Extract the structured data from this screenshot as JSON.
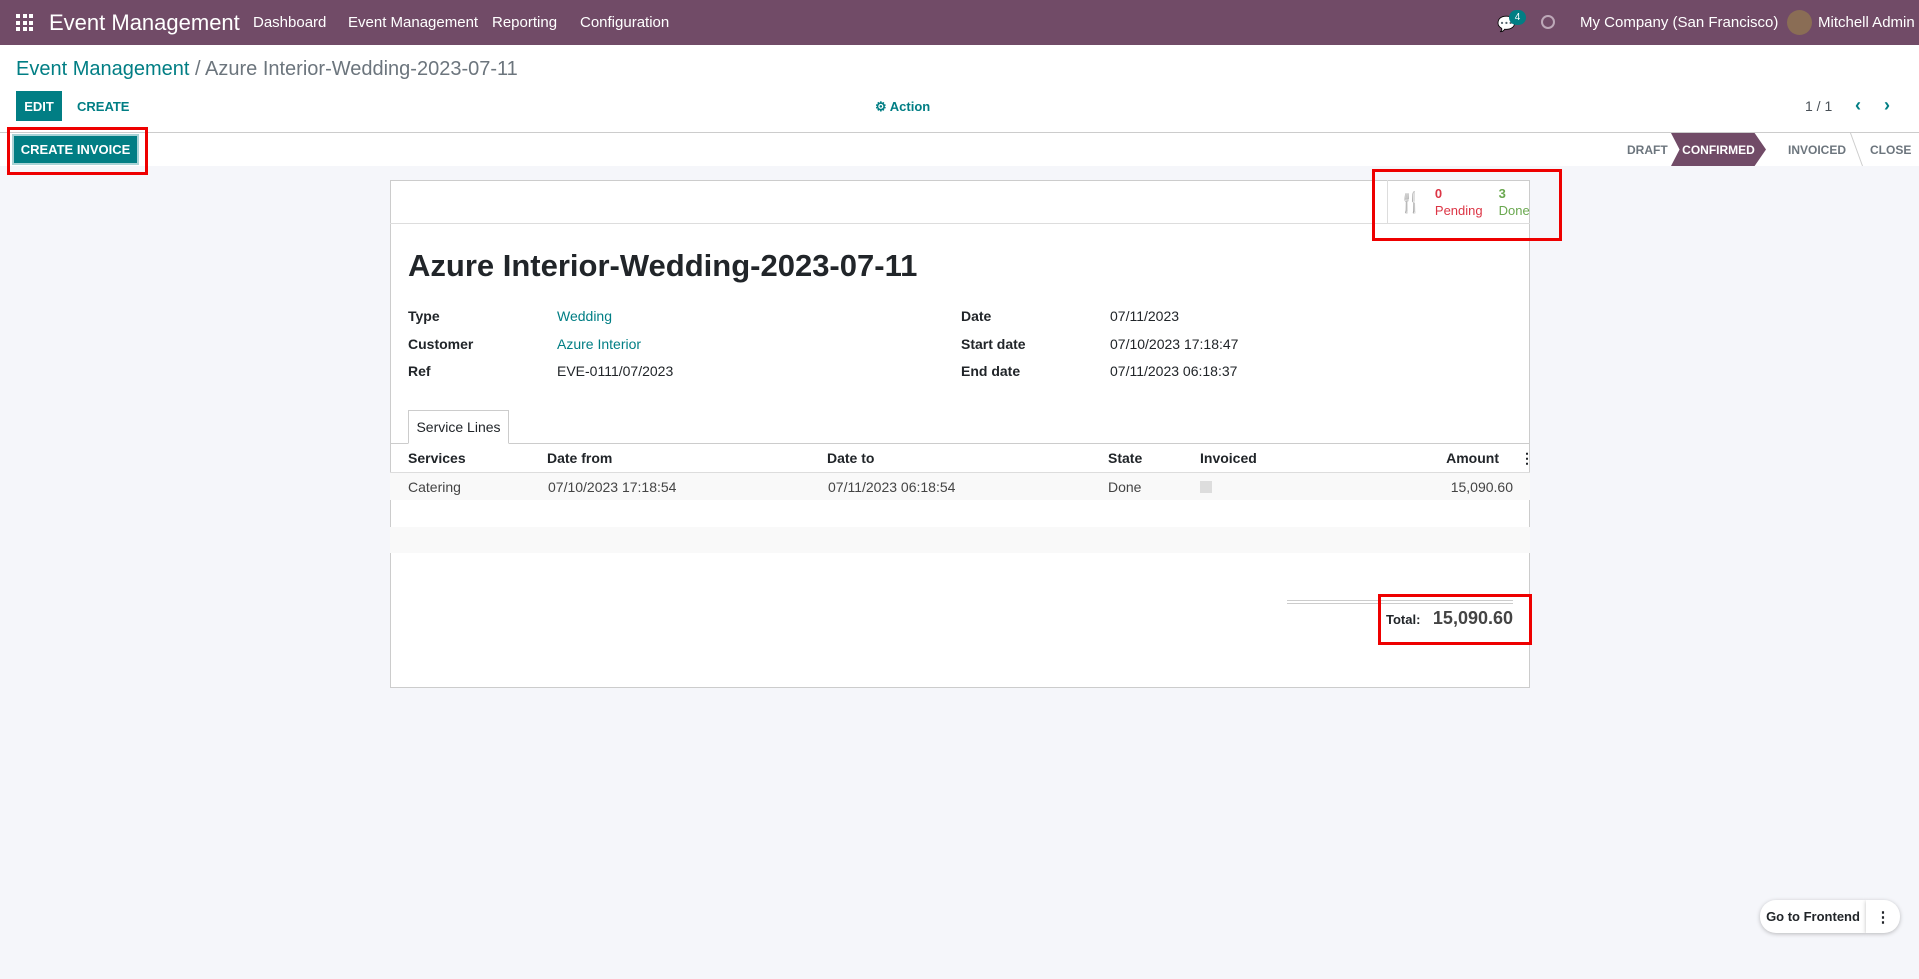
{
  "navbar": {
    "app_title": "Event Management",
    "menu": [
      "Dashboard",
      "Event Management",
      "Reporting",
      "Configuration"
    ],
    "chat_count": "4",
    "company": "My Company (San Francisco)",
    "user": "Mitchell Admin",
    "color": "#714b67"
  },
  "breadcrumb": {
    "parent": "Event Management",
    "separator": " / ",
    "current": "Azure Interior-Wedding-2023-07-11"
  },
  "controls": {
    "edit": "EDIT",
    "create": "CREATE",
    "action": "Action",
    "pager": "1 / 1"
  },
  "statusbar": {
    "create_invoice": "CREATE INVOICE",
    "stages": [
      "DRAFT",
      "CONFIRMED",
      "INVOICED",
      "CLOSE"
    ],
    "active_stage": "CONFIRMED"
  },
  "smart_button": {
    "icon": "cutlery-icon",
    "pending_count": "0",
    "pending_label": "Pending",
    "done_count": "3",
    "done_label": "Done"
  },
  "form": {
    "title": "Azure Interior-Wedding-2023-07-11",
    "left": [
      {
        "label": "Type",
        "value": "Wedding"
      },
      {
        "label": "Customer",
        "value": "Azure Interior"
      },
      {
        "label": "Ref",
        "value": "EVE-0111/07/2023"
      }
    ],
    "right": [
      {
        "label": "Date",
        "value": "07/11/2023"
      },
      {
        "label": "Start date",
        "value": "07/10/2023 17:18:47"
      },
      {
        "label": "End date",
        "value": "07/11/2023 06:18:37"
      }
    ]
  },
  "tabs": [
    "Service Lines"
  ],
  "table": {
    "columns": [
      "Services",
      "Date from",
      "Date to",
      "State",
      "Invoiced",
      "Amount"
    ],
    "rows": [
      {
        "service": "Catering",
        "date_from": "07/10/2023 17:18:54",
        "date_to": "07/11/2023 06:18:54",
        "state": "Done",
        "invoiced": false,
        "amount": "15,090.60"
      }
    ]
  },
  "total": {
    "label": "Total:",
    "value": "15,090.60"
  },
  "frontend": {
    "label": "Go to Frontend"
  }
}
